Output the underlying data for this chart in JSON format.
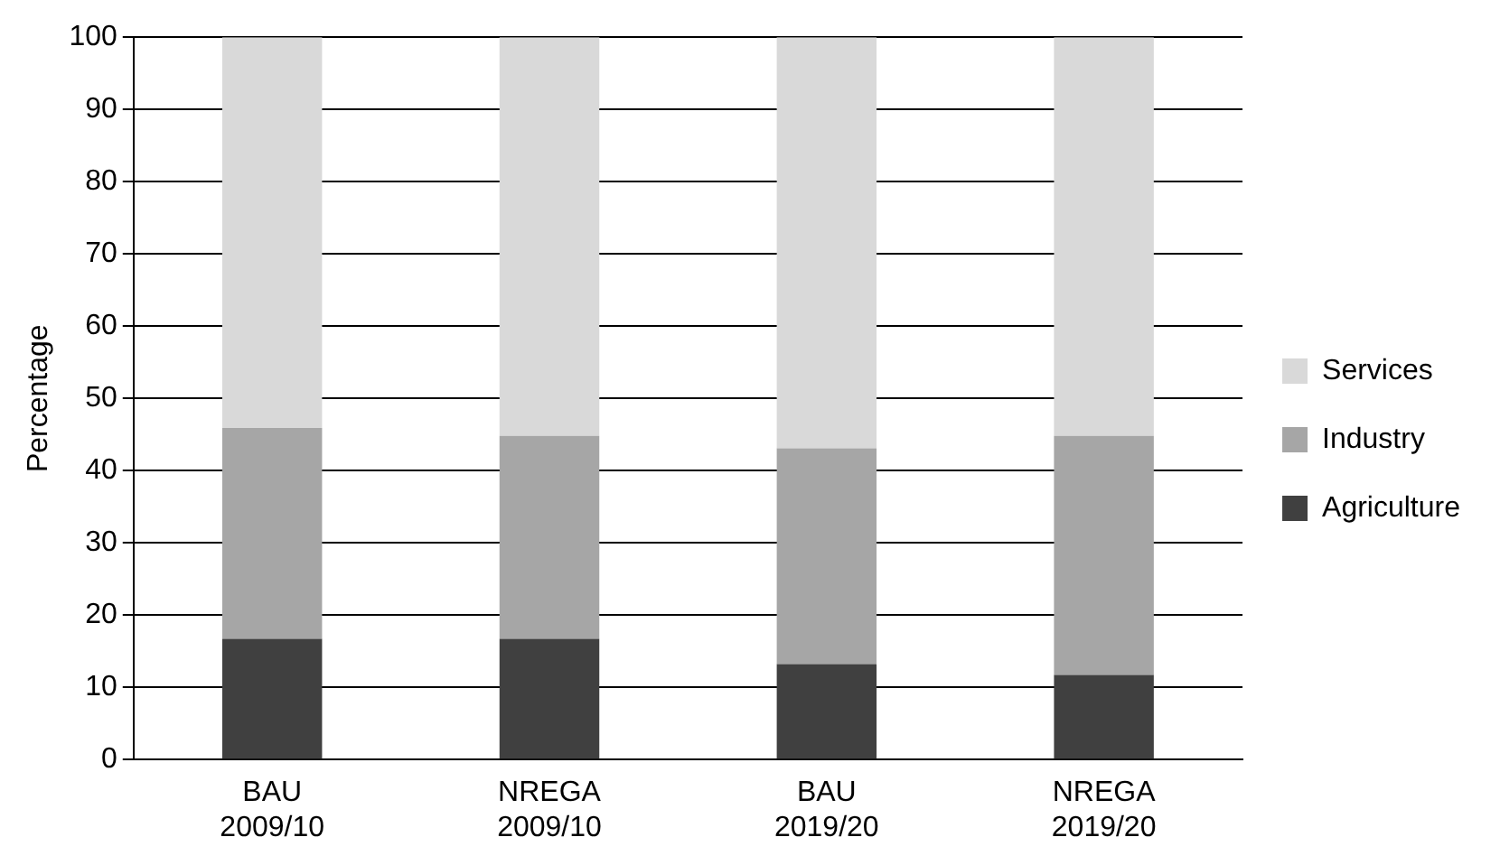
{
  "chart_data": {
    "type": "bar",
    "ylabel": "Percentage",
    "categories": [
      "BAU 2009/10",
      "NREGA 2009/10",
      "BAU 2019/20",
      "NREGA 2019/20"
    ],
    "stacked": true,
    "ylim": [
      0,
      100
    ],
    "yticks": [
      0,
      10,
      20,
      30,
      40,
      50,
      60,
      70,
      80,
      90,
      100
    ],
    "grid": "y",
    "legend": "right",
    "series": [
      {
        "name": "Agriculture",
        "color": "#404040",
        "values": [
          16.7,
          16.7,
          13.2,
          11.7
        ]
      },
      {
        "name": "Industry",
        "color": "#a6a6a6",
        "values": [
          29.2,
          28.1,
          29.9,
          33.1
        ]
      },
      {
        "name": "Services",
        "color": "#d9d9d9",
        "values": [
          54.1,
          55.2,
          56.9,
          55.2
        ]
      }
    ]
  }
}
